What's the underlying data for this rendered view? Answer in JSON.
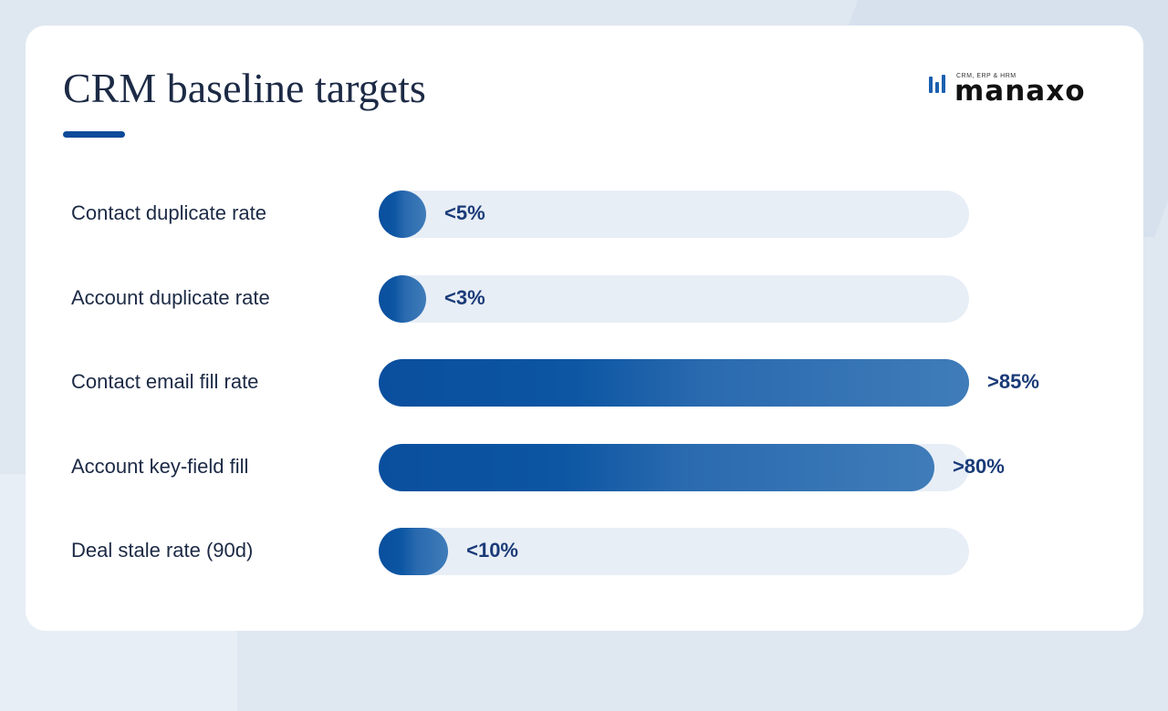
{
  "header": {
    "title": "CRM baseline targets",
    "logo": {
      "name": "manaxo",
      "tagline": "CRM, ERP & HRM",
      "icon": "bar-mark-icon"
    }
  },
  "colors": {
    "accent": "#0d4a99",
    "track": "#e8eef6",
    "fill_start": "#0a4f9e",
    "fill_end": "#3f7cb9",
    "value_text": "#1a3b78"
  },
  "chart_data": {
    "type": "bar",
    "orientation": "horizontal",
    "categories": [
      "Contact duplicate rate",
      "Account duplicate rate",
      "Contact email fill rate",
      "Account key-field fill",
      "Deal stale rate (90d)"
    ],
    "values": [
      5,
      3,
      85,
      80,
      10
    ],
    "value_labels": [
      "<5%",
      "<3%",
      ">85%",
      ">80%",
      "<10%"
    ],
    "xlim": [
      0,
      85
    ],
    "grid": false
  }
}
